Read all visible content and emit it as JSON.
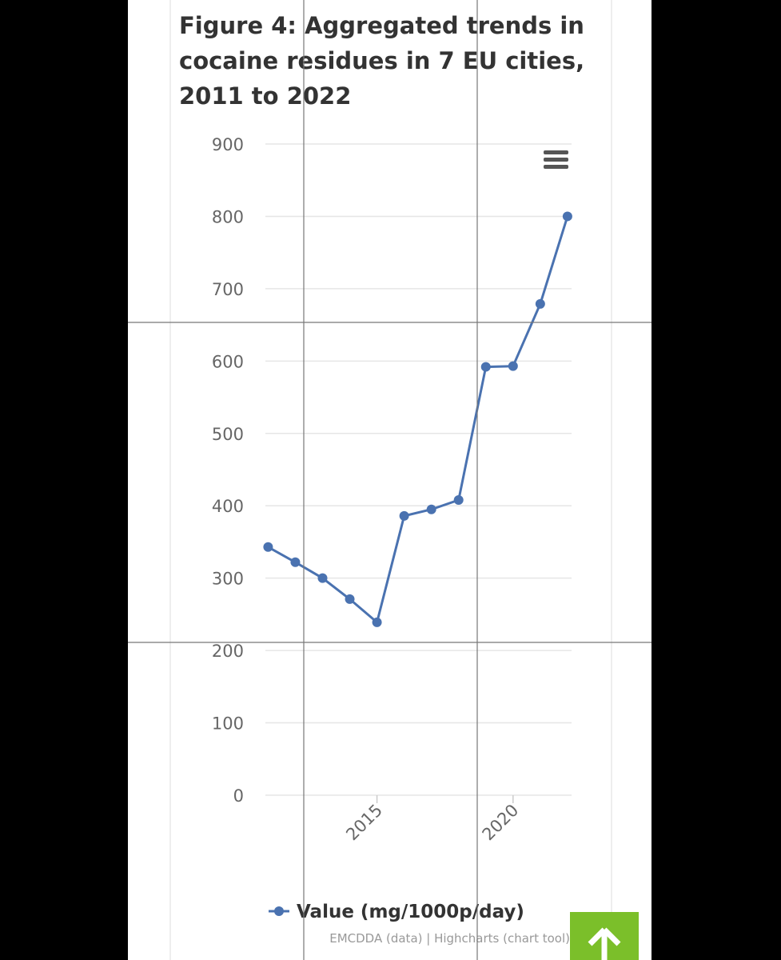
{
  "chart_data": {
    "type": "line",
    "title": [
      "Figure 4: Aggregated trends in",
      "cocaine residues in 7 EU cities,",
      "2011 to 2022"
    ],
    "x": [
      2011,
      2012,
      2013,
      2014,
      2015,
      2016,
      2017,
      2018,
      2019,
      2020,
      2021,
      2022
    ],
    "series": [
      {
        "name": "Value (mg/1000p/day)",
        "color": "#4a72b0",
        "values": [
          343,
          322,
          300,
          271,
          239,
          386,
          395,
          408,
          592,
          593,
          679,
          800
        ]
      }
    ],
    "xlim": [
      2010.9,
      2022.15
    ],
    "xticks": [
      2015,
      2020
    ],
    "ylim": [
      0,
      900
    ],
    "yticks": [
      0,
      100,
      200,
      300,
      400,
      500,
      600,
      700,
      800,
      900
    ],
    "grid": true
  },
  "credits": "EMCDDA (data) | Highcharts (chart tool)"
}
